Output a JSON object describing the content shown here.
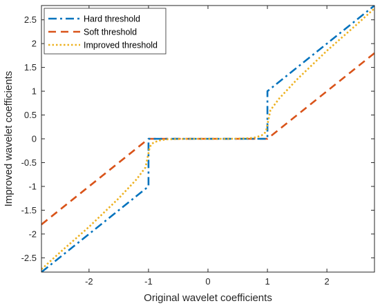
{
  "chart_data": {
    "type": "line",
    "xlabel": "Original wavelet coefficients",
    "ylabel": "Improved wavelet coefficients",
    "xlim": [
      -2.8,
      2.8
    ],
    "ylim": [
      -2.8,
      2.8
    ],
    "x_ticks": [
      -2,
      -1,
      0,
      1,
      2
    ],
    "y_ticks": [
      -2.5,
      -2,
      -1.5,
      -1,
      -0.5,
      0,
      0.5,
      1,
      1.5,
      2,
      2.5
    ],
    "threshold": 1,
    "grid": false,
    "legend_position": "top-left",
    "series": [
      {
        "name": "Hard threshold",
        "color": "#0072BD",
        "style": "dash-dot",
        "x": [
          -2.8,
          -1.0,
          -1.0,
          1.0,
          1.0,
          2.8
        ],
        "y": [
          -2.8,
          -1.0,
          0.0,
          0.0,
          1.0,
          2.8
        ]
      },
      {
        "name": "Soft threshold",
        "color": "#D95319",
        "style": "dashed",
        "x": [
          -2.8,
          -1.0,
          1.0,
          2.8
        ],
        "y": [
          -1.8,
          0.0,
          0.0,
          1.8
        ]
      },
      {
        "name": "Improved threshold",
        "color": "#EDB120",
        "style": "dotted",
        "x": [
          -2.8,
          -2.5,
          -2.0,
          -1.5,
          -1.2,
          -1.05,
          -1.0,
          -0.98,
          -0.95,
          -0.9,
          -0.8,
          -0.7,
          -0.5,
          -0.3,
          0.0,
          0.3,
          0.5,
          0.7,
          0.8,
          0.9,
          0.95,
          0.98,
          1.0,
          1.05,
          1.2,
          1.5,
          2.0,
          2.5,
          2.8
        ],
        "y": [
          -2.74,
          -2.4,
          -1.85,
          -1.25,
          -0.85,
          -0.6,
          -0.3,
          -0.18,
          -0.11,
          -0.07,
          -0.03,
          -0.012,
          -0.003,
          0.0,
          0.0,
          0.0,
          0.003,
          0.012,
          0.03,
          0.07,
          0.11,
          0.18,
          0.3,
          0.6,
          0.85,
          1.25,
          1.85,
          2.4,
          2.74
        ]
      }
    ]
  }
}
